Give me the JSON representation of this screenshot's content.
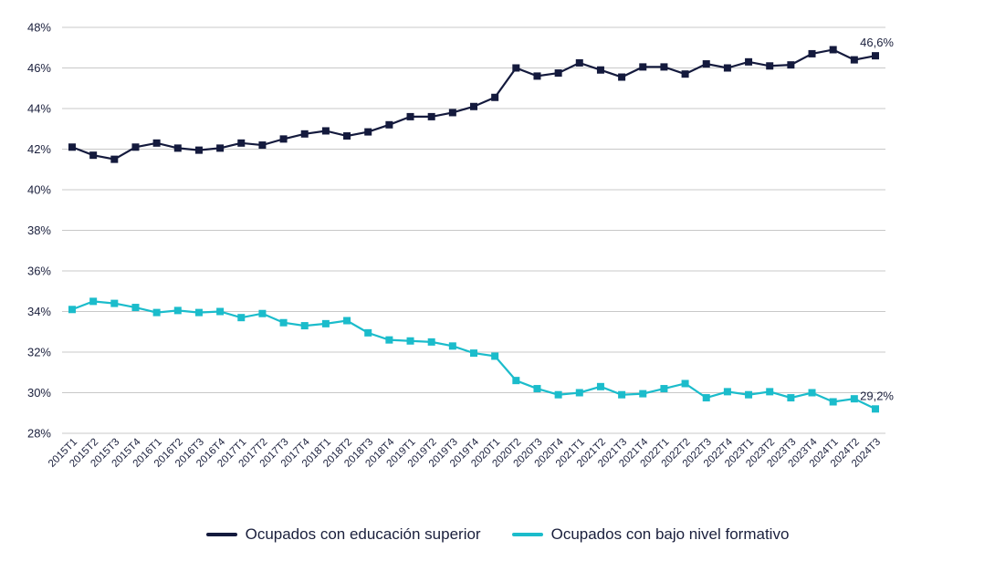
{
  "chart_data": {
    "type": "line",
    "categories": [
      "2015T1",
      "2015T2",
      "2015T3",
      "2015T4",
      "2016T1",
      "2016T2",
      "2016T3",
      "2016T4",
      "2017T1",
      "2017T2",
      "2017T3",
      "2017T4",
      "2018T1",
      "2018T2",
      "2018T3",
      "2018T4",
      "2019T1",
      "2019T2",
      "2019T3",
      "2019T4",
      "2020T1",
      "2020T2",
      "2020T3",
      "2020T4",
      "2021T1",
      "2021T2",
      "2021T3",
      "2021T4",
      "2022T1",
      "2022T2",
      "2022T3",
      "2022T4",
      "2023T1",
      "2023T2",
      "2023T3",
      "2023T4",
      "2024T1",
      "2024T2",
      "2024T3"
    ],
    "series": [
      {
        "name": "Ocupados con educación superior",
        "color": "#141a3d",
        "values": [
          42.1,
          41.7,
          41.5,
          42.1,
          42.3,
          42.05,
          41.95,
          42.05,
          42.3,
          42.2,
          42.5,
          42.75,
          42.9,
          42.65,
          42.85,
          43.2,
          43.6,
          43.6,
          43.8,
          44.1,
          44.55,
          46.0,
          45.6,
          45.75,
          46.25,
          45.9,
          45.55,
          46.05,
          46.05,
          45.7,
          46.2,
          46.0,
          46.3,
          46.1,
          46.15,
          46.7,
          46.9,
          46.4,
          46.6
        ],
        "end_label": "46,6%"
      },
      {
        "name": "Ocupados con bajo nivel formativo",
        "color": "#1bbccb",
        "values": [
          34.1,
          34.5,
          34.4,
          34.2,
          33.95,
          34.05,
          33.95,
          34.0,
          33.7,
          33.9,
          33.45,
          33.3,
          33.4,
          33.55,
          32.95,
          32.6,
          32.55,
          32.5,
          32.3,
          31.95,
          31.8,
          30.6,
          30.2,
          29.9,
          30.0,
          30.3,
          29.9,
          29.95,
          30.2,
          30.45,
          29.75,
          30.05,
          29.9,
          30.05,
          29.75,
          30.0,
          29.55,
          29.7,
          29.2
        ],
        "end_label": "29,2%"
      }
    ],
    "y_ticks": [
      "28%",
      "30%",
      "32%",
      "34%",
      "36%",
      "38%",
      "40%",
      "42%",
      "44%",
      "46%",
      "48%"
    ],
    "ylim": [
      28,
      48
    ],
    "grid": true,
    "legend_position": "bottom-center"
  }
}
